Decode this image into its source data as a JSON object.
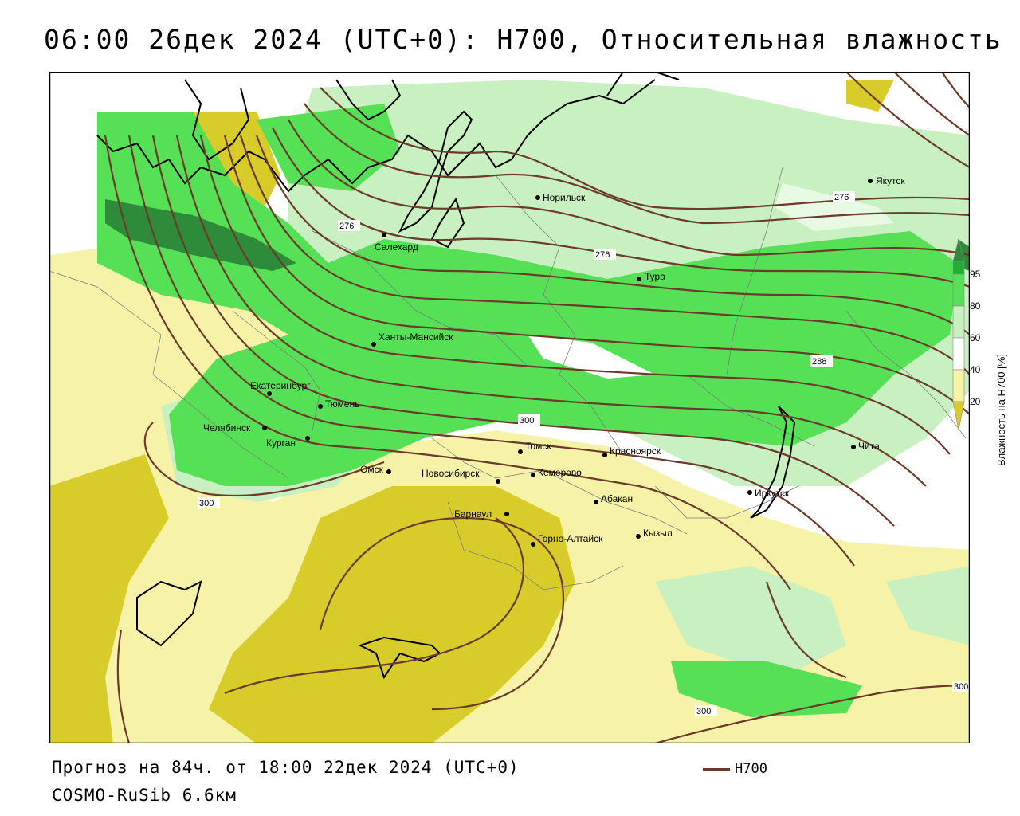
{
  "title": "06:00 26дек 2024 (UTC+0): H700, Относительная влажность",
  "footer": {
    "forecast": "Прогноз на 84ч. от 18:00 22дек 2024 (UTC+0)",
    "model": "COSMO-RuSib 6.6км"
  },
  "legend": {
    "line_label": "H700",
    "line_color": "#6b3a2a"
  },
  "colorbar": {
    "label": "Влажность на H700 [%]",
    "ticks": [
      "20",
      "40",
      "60",
      "80",
      "95"
    ],
    "colors": [
      "#d8cc2a",
      "#f6f3a8",
      "#ffffff",
      "#c8f0c0",
      "#56e056",
      "#1faf35",
      "#2e8b3a"
    ]
  },
  "contours": {
    "labels": [
      "276",
      "276",
      "276",
      "288",
      "300",
      "300",
      "300",
      "300"
    ]
  },
  "cities": [
    {
      "name": "Норильск"
    },
    {
      "name": "Якутск"
    },
    {
      "name": "Салехард"
    },
    {
      "name": "Тура"
    },
    {
      "name": "Ханты-Мансийск"
    },
    {
      "name": "Екатеринбург"
    },
    {
      "name": "Тюмень"
    },
    {
      "name": "Челябинск"
    },
    {
      "name": "Курган"
    },
    {
      "name": "Омск"
    },
    {
      "name": "Томск"
    },
    {
      "name": "Красноярск"
    },
    {
      "name": "Новосибирск"
    },
    {
      "name": "Кемерово"
    },
    {
      "name": "Абакан"
    },
    {
      "name": "Барнаул"
    },
    {
      "name": "Горно-Алтайск"
    },
    {
      "name": "Кызыл"
    },
    {
      "name": "Иркутск"
    },
    {
      "name": "Чита"
    }
  ]
}
